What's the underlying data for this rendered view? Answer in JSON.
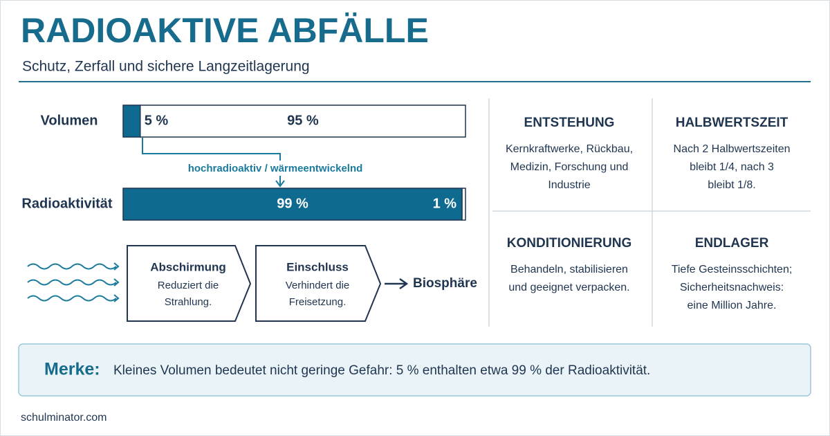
{
  "header": {
    "title": "RADIOAKTIVE ABFÄLLE",
    "subtitle": "Schutz, Zerfall und sichere Langzeitlagerung"
  },
  "bars": [
    {
      "label": "Volumen",
      "values": [
        5,
        95
      ],
      "value_labels": [
        "5 %",
        "95 %"
      ],
      "colors": [
        "#0f6a8f",
        "#ffffff"
      ]
    },
    {
      "label": "Radioaktivität",
      "values": [
        99,
        1
      ],
      "value_labels": [
        "99 %",
        "1 %"
      ],
      "colors": [
        "#0f6a8f",
        "#ffffff"
      ]
    }
  ],
  "connector_label": "hochradioaktiv / wärmeentwickelnd",
  "barriers": [
    {
      "title": "Abschirmung",
      "text": [
        "Reduziert die",
        "Strahlung."
      ]
    },
    {
      "title": "Einschluss",
      "text": [
        "Verhindert die",
        "Freisetzung."
      ]
    }
  ],
  "target": "Biosphäre",
  "cards": [
    {
      "title": "ENTSTEHUNG",
      "text": [
        "Kernkraftwerke, Rückbau,",
        "Medizin, Forschung und",
        "Industrie"
      ]
    },
    {
      "title": "HALBWERTSZEIT",
      "text": [
        "Nach 2 Halbwertszeiten",
        "bleibt 1/4, nach 3",
        "bleibt 1/8."
      ]
    },
    {
      "title": "KONDITIONIERUNG",
      "text": [
        "Behandeln, stabilisieren",
        "und geeignet verpacken."
      ]
    },
    {
      "title": "ENDLAGER",
      "text": [
        "Tiefe Gesteinsschichten;",
        "Sicherheitsnachweis:",
        "eine Million Jahre."
      ]
    }
  ],
  "note": {
    "label": "Merke:",
    "text": "Kleines Volumen bedeutet nicht geringe Gefahr: 5 % enthalten etwa 99 % der Radioaktivität."
  },
  "footer": "schulminator.com"
}
